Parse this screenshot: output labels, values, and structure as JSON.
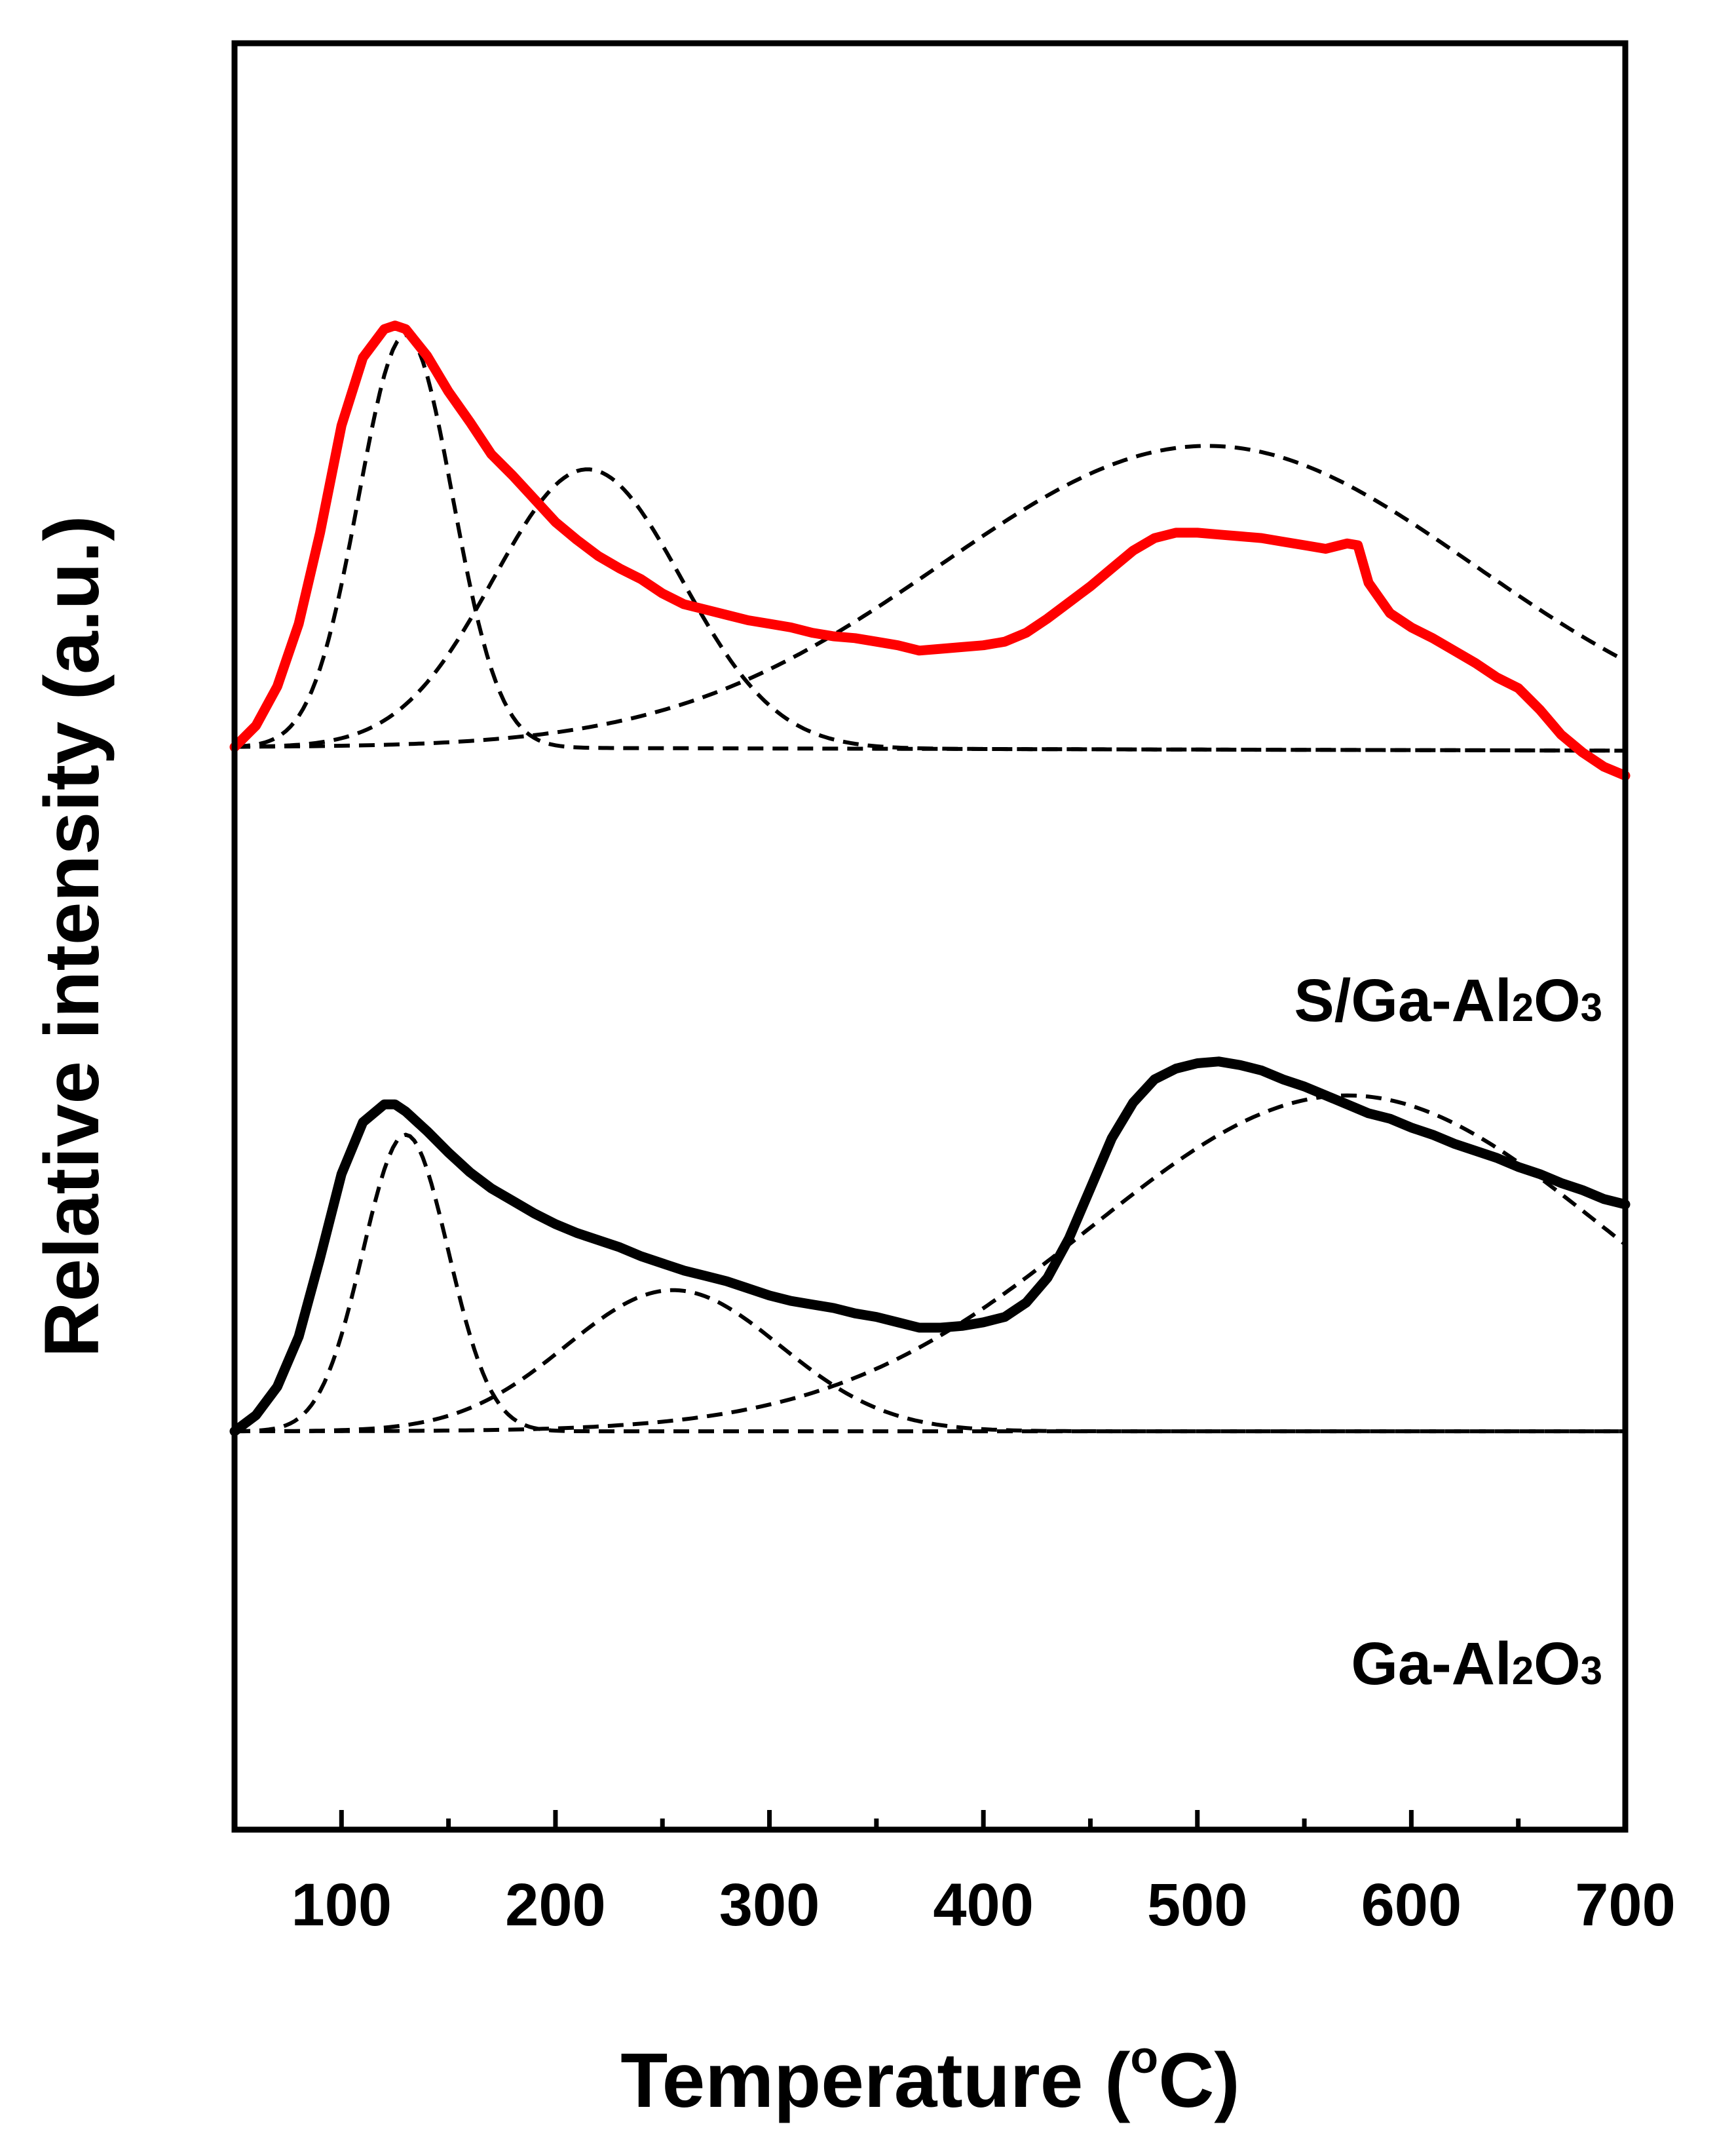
{
  "chart_data": {
    "type": "line",
    "title": "",
    "xlabel_text": "Temperature (",
    "xlabel_sup": "o",
    "xlabel_unit": "C)",
    "ylabel": "Relative intensity (a.u.)",
    "xlim": [
      50,
      700
    ],
    "xticks": [
      100,
      200,
      300,
      400,
      500,
      600,
      700
    ],
    "xminor": [
      150,
      250,
      350,
      450,
      550,
      650
    ],
    "ylim": [
      0,
      100
    ],
    "yticks": [],
    "grid": false,
    "legend": "none",
    "panels": [
      {
        "name": "S/Ga-Al2O3",
        "label_main": "S/Ga-Al",
        "label_sub1": "2",
        "label_mid": "O",
        "label_sub2": "3",
        "color": "#ff0000",
        "measured": {
          "x": [
            50,
            60,
            70,
            80,
            90,
            100,
            110,
            120,
            125,
            130,
            140,
            150,
            160,
            170,
            180,
            190,
            200,
            210,
            220,
            230,
            240,
            250,
            260,
            270,
            280,
            290,
            300,
            310,
            320,
            330,
            340,
            350,
            360,
            370,
            380,
            390,
            400,
            410,
            420,
            430,
            440,
            450,
            460,
            470,
            480,
            490,
            500,
            510,
            520,
            530,
            540,
            550,
            560,
            570,
            575,
            580,
            590,
            600,
            610,
            620,
            630,
            640,
            650,
            660,
            670,
            680,
            690,
            700
          ],
          "y": [
            60.6,
            61.8,
            64.0,
            67.5,
            72.6,
            78.6,
            82.4,
            84.0,
            84.2,
            84.0,
            82.5,
            80.5,
            78.8,
            77.0,
            75.8,
            74.5,
            73.2,
            72.2,
            71.3,
            70.6,
            70.0,
            69.2,
            68.6,
            68.3,
            68.0,
            67.7,
            67.5,
            67.3,
            67.0,
            66.8,
            66.7,
            66.5,
            66.3,
            66.0,
            66.1,
            66.2,
            66.3,
            66.5,
            67.0,
            67.8,
            68.7,
            69.6,
            70.6,
            71.6,
            72.3,
            72.6,
            72.6,
            72.5,
            72.4,
            72.3,
            72.1,
            71.9,
            71.7,
            72.0,
            71.9,
            69.8,
            68.1,
            67.3,
            66.7,
            66.0,
            65.3,
            64.5,
            63.9,
            62.7,
            61.3,
            60.3,
            59.5,
            59.0
          ]
        },
        "baseline": 60.6,
        "baseline_end": 60.4,
        "components": [
          {
            "center": 130,
            "height": 23.1,
            "sigma": 22
          },
          {
            "center": 215,
            "height": 15.6,
            "sigma": 44
          },
          {
            "center": 505,
            "height": 17.0,
            "sigma": 125
          }
        ]
      },
      {
        "name": "Ga-Al2O3",
        "label_main": "Ga-Al",
        "label_sub1": "2",
        "label_mid": "O",
        "label_sub2": "3",
        "color": "#000000",
        "measured": {
          "x": [
            50,
            60,
            70,
            80,
            90,
            100,
            110,
            120,
            125,
            130,
            140,
            150,
            160,
            170,
            180,
            190,
            200,
            210,
            220,
            230,
            240,
            250,
            260,
            270,
            280,
            290,
            300,
            310,
            320,
            330,
            340,
            350,
            360,
            370,
            380,
            390,
            400,
            410,
            420,
            430,
            440,
            450,
            460,
            470,
            480,
            490,
            500,
            510,
            520,
            530,
            540,
            550,
            560,
            570,
            580,
            590,
            600,
            610,
            620,
            630,
            640,
            650,
            660,
            670,
            680,
            690,
            700
          ],
          "y": [
            22.3,
            23.2,
            24.8,
            27.6,
            32.0,
            36.7,
            39.6,
            40.6,
            40.6,
            40.2,
            39.1,
            37.9,
            36.8,
            35.9,
            35.2,
            34.5,
            33.9,
            33.4,
            33.0,
            32.6,
            32.1,
            31.7,
            31.3,
            31.0,
            30.7,
            30.3,
            29.9,
            29.6,
            29.4,
            29.2,
            28.9,
            28.7,
            28.4,
            28.1,
            28.1,
            28.2,
            28.4,
            28.7,
            29.5,
            30.9,
            33.1,
            35.9,
            38.7,
            40.7,
            42.0,
            42.6,
            42.9,
            43.0,
            42.8,
            42.5,
            42.0,
            41.6,
            41.1,
            40.6,
            40.1,
            39.8,
            39.3,
            38.9,
            38.4,
            38.0,
            37.6,
            37.1,
            36.7,
            36.2,
            35.8,
            35.3,
            35.0
          ]
        },
        "baseline": 22.3,
        "baseline_end": 22.3,
        "components": [
          {
            "center": 130,
            "height": 16.6,
            "sigma": 20
          },
          {
            "center": 255,
            "height": 7.9,
            "sigma": 50
          },
          {
            "center": 570,
            "height": 18.8,
            "sigma": 120
          }
        ]
      }
    ]
  }
}
